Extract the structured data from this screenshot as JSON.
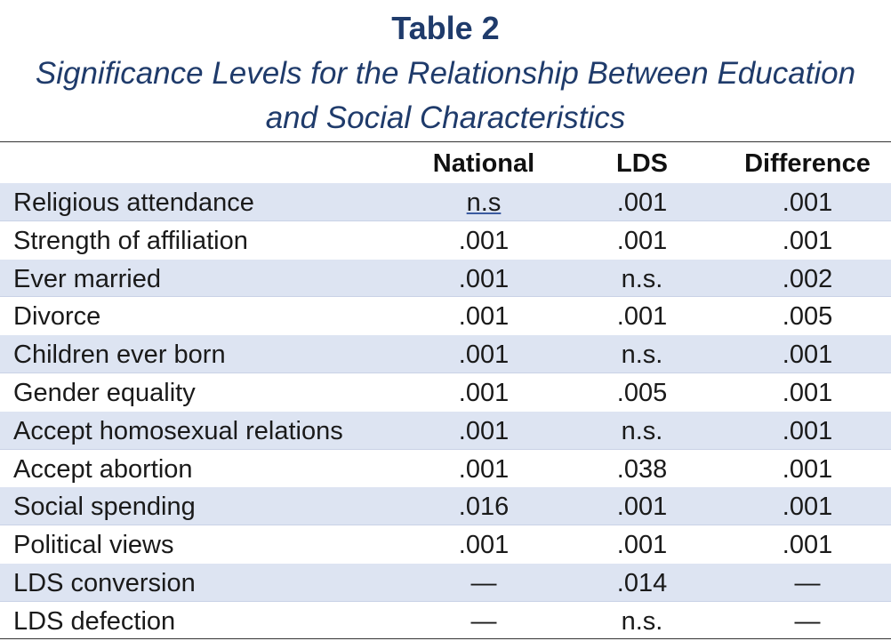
{
  "title": "Table 2",
  "subtitle_line1": "Significance Levels for the Relationship Between Education",
  "subtitle_line2": "and Social Characteristics",
  "columns": [
    "National",
    "LDS",
    "Difference"
  ],
  "rows": [
    {
      "label": "Religious attendance",
      "national": "n.s",
      "lds": ".001",
      "difference": ".001"
    },
    {
      "label": "Strength of affiliation",
      "national": ".001",
      "lds": ".001",
      "difference": ".001"
    },
    {
      "label": "Ever married",
      "national": ".001",
      "lds": "n.s.",
      "difference": ".002"
    },
    {
      "label": "Divorce",
      "national": ".001",
      "lds": ".001",
      "difference": ".005"
    },
    {
      "label": "Children ever born",
      "national": ".001",
      "lds": "n.s.",
      "difference": ".001"
    },
    {
      "label": "Gender equality",
      "national": ".001",
      "lds": ".005",
      "difference": ".001"
    },
    {
      "label": "Accept homosexual relations",
      "national": ".001",
      "lds": "n.s.",
      "difference": ".001"
    },
    {
      "label": "Accept abortion",
      "national": ".001",
      "lds": ".038",
      "difference": ".001"
    },
    {
      "label": "Social spending",
      "national": ".016",
      "lds": ".001",
      "difference": ".001"
    },
    {
      "label": "Political views",
      "national": ".001",
      "lds": ".001",
      "difference": ".001"
    },
    {
      "label": "LDS conversion",
      "national": "—",
      "lds": ".014",
      "difference": "—"
    },
    {
      "label": "LDS defection",
      "national": "—",
      "lds": "n.s.",
      "difference": "—"
    }
  ],
  "colors": {
    "title": "#1f3b6b",
    "row_shade": "#dde4f2"
  }
}
